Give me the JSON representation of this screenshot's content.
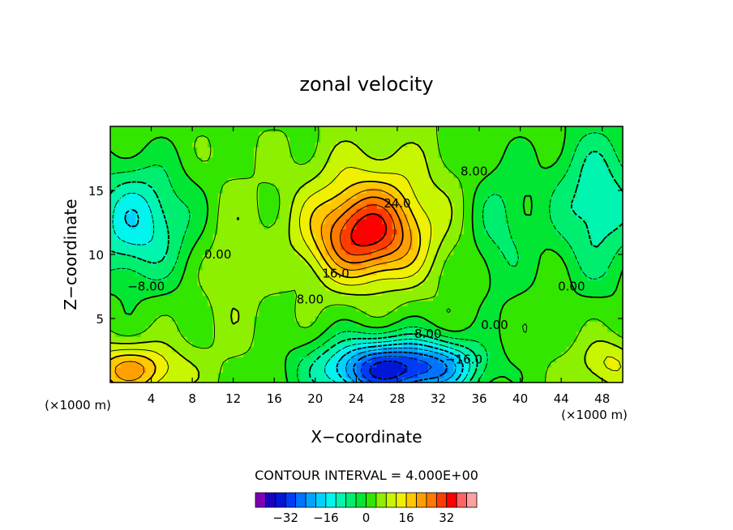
{
  "chart_data": {
    "type": "heatmap",
    "title": "zonal velocity",
    "xlabel": "X−coordinate",
    "ylabel": "Z−coordinate",
    "xunit": "(×1000 m)",
    "yunit": "(×1000 m)",
    "xlim": [
      0,
      50
    ],
    "ylim": [
      0,
      20
    ],
    "xticks": [
      "4",
      "8",
      "12",
      "16",
      "20",
      "24",
      "28",
      "32",
      "36",
      "40",
      "44",
      "48"
    ],
    "yticks": [
      "5",
      "10",
      "15"
    ],
    "contour_interval_text": "CONTOUR INTERVAL = 4.000E+00",
    "contour_labels": [
      {
        "text": "24.0",
        "x": 28,
        "y": 14
      },
      {
        "text": "16.0",
        "x": 22,
        "y": 8.5
      },
      {
        "text": "8.00",
        "x": 35.5,
        "y": 16.5
      },
      {
        "text": "0.00",
        "x": 10.5,
        "y": 10
      },
      {
        "text": "−8.00",
        "x": 3.5,
        "y": 7.5
      },
      {
        "text": "8.00",
        "x": 19.5,
        "y": 6.5
      },
      {
        "text": "0.00",
        "x": 37.5,
        "y": 4.5
      },
      {
        "text": "0.00",
        "x": 45,
        "y": 7.5
      },
      {
        "text": "−8.00",
        "x": 30.5,
        "y": 3.8
      },
      {
        "text": "−16.0",
        "x": 34.5,
        "y": 1.8
      }
    ],
    "colorbar": {
      "levels": [
        -40,
        -36,
        -32,
        -28,
        -24,
        -20,
        -16,
        -12,
        -8,
        -4,
        0,
        4,
        8,
        12,
        16,
        20,
        24,
        28,
        32,
        36,
        40
      ],
      "colors": [
        "#7f00b2",
        "#1b00bf",
        "#0016d9",
        "#003cf5",
        "#0073ff",
        "#00a4ff",
        "#00d2ff",
        "#00f5ee",
        "#00f5b0",
        "#00ee70",
        "#00e632",
        "#32e600",
        "#8cf000",
        "#c8f500",
        "#f0f000",
        "#ffc800",
        "#ffa000",
        "#ff7800",
        "#ff3c00",
        "#ff0000",
        "#ff6464",
        "#ffa0a0"
      ],
      "tick_labels": [
        {
          "text": "−32",
          "value": -32
        },
        {
          "text": "−16",
          "value": -16
        },
        {
          "text": "0",
          "value": 0
        },
        {
          "text": "16",
          "value": 16
        },
        {
          "text": "32",
          "value": 32
        }
      ]
    },
    "field_sources": [
      {
        "x": 25,
        "y": 11.5,
        "amp": 30,
        "sx": 5.5,
        "sy": 3.5
      },
      {
        "x": 26,
        "y": 16,
        "amp": 6,
        "sx": 7,
        "sy": 4
      },
      {
        "x": 27,
        "y": 1,
        "amp": -36,
        "sx": 6.5,
        "sy": 2.4
      },
      {
        "x": 33,
        "y": 1.5,
        "amp": -10,
        "sx": 4,
        "sy": 2
      },
      {
        "x": 2.5,
        "y": 12.5,
        "amp": -18,
        "sx": 5,
        "sy": 4.5
      },
      {
        "x": 47.5,
        "y": 14,
        "amp": -14,
        "sx": 4.5,
        "sy": 6
      },
      {
        "x": 2,
        "y": 1,
        "amp": 18,
        "sx": 5,
        "sy": 2
      },
      {
        "x": 48.5,
        "y": 1.5,
        "amp": 10,
        "sx": 3,
        "sy": 2
      },
      {
        "x": 38,
        "y": 12,
        "amp": -8,
        "sx": 3,
        "sy": 6
      },
      {
        "x": 12,
        "y": 9,
        "amp": 5,
        "sx": 2.5,
        "sy": 6
      }
    ],
    "field_base": 3
  }
}
